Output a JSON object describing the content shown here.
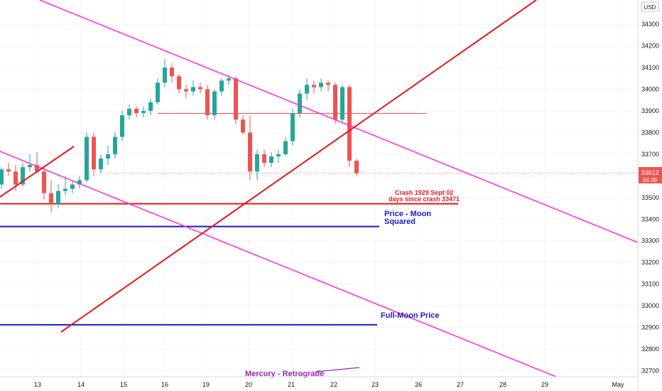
{
  "chart_data": {
    "type": "candlestick",
    "currency": "USD",
    "price_label": "33612",
    "countdown_label": "54:39",
    "y_axis_ticks": [
      "34300",
      "34200",
      "34100",
      "34000",
      "33900",
      "33800",
      "33700",
      "33600",
      "33500",
      "33400",
      "33300",
      "33200",
      "33100",
      "33000",
      "32900",
      "32800",
      "32700"
    ],
    "x_axis_ticks": [
      "13",
      "14",
      "15",
      "16",
      "19",
      "20",
      "21",
      "22",
      "23",
      "26",
      "27",
      "28",
      "29",
      "May"
    ],
    "ylim": [
      32660,
      34420
    ],
    "candles": [
      [
        33560,
        33640,
        33540,
        33630
      ],
      [
        33630,
        33660,
        33600,
        33620
      ],
      [
        33620,
        33650,
        33530,
        33560
      ],
      [
        33560,
        33660,
        33550,
        33640
      ],
      [
        33640,
        33700,
        33620,
        33650
      ],
      [
        33650,
        33710,
        33610,
        33620
      ],
      [
        33620,
        33640,
        33490,
        33520
      ],
      [
        33520,
        33580,
        33430,
        33470
      ],
      [
        33470,
        33560,
        33450,
        33530
      ],
      [
        33530,
        33600,
        33510,
        33540
      ],
      [
        33540,
        33580,
        33520,
        33560
      ],
      [
        33560,
        33600,
        33540,
        33580
      ],
      [
        33580,
        33800,
        33570,
        33780
      ],
      [
        33780,
        33800,
        33600,
        33630
      ],
      [
        33630,
        33700,
        33610,
        33680
      ],
      [
        33680,
        33740,
        33650,
        33700
      ],
      [
        33700,
        33800,
        33680,
        33780
      ],
      [
        33780,
        33900,
        33760,
        33880
      ],
      [
        33880,
        33930,
        33860,
        33910
      ],
      [
        33910,
        33920,
        33870,
        33890
      ],
      [
        33890,
        33920,
        33870,
        33900
      ],
      [
        33900,
        33960,
        33880,
        33940
      ],
      [
        33940,
        34050,
        33930,
        34030
      ],
      [
        34030,
        34140,
        34010,
        34100
      ],
      [
        34100,
        34120,
        34030,
        34060
      ],
      [
        34060,
        34070,
        33980,
        34000
      ],
      [
        34000,
        34020,
        33960,
        33990
      ],
      [
        33990,
        34040,
        33970,
        34010
      ],
      [
        34010,
        34030,
        33980,
        34000
      ],
      [
        34000,
        34020,
        33860,
        33880
      ],
      [
        33880,
        34000,
        33860,
        33990
      ],
      [
        33990,
        34050,
        33970,
        34040
      ],
      [
        34040,
        34070,
        34020,
        34050
      ],
      [
        34050,
        34060,
        33840,
        33860
      ],
      [
        33860,
        33880,
        33790,
        33800
      ],
      [
        33800,
        33880,
        33580,
        33620
      ],
      [
        33620,
        33720,
        33580,
        33700
      ],
      [
        33700,
        33720,
        33640,
        33660
      ],
      [
        33660,
        33710,
        33640,
        33690
      ],
      [
        33690,
        33720,
        33660,
        33700
      ],
      [
        33700,
        33780,
        33690,
        33760
      ],
      [
        33760,
        33910,
        33740,
        33890
      ],
      [
        33890,
        34000,
        33870,
        33980
      ],
      [
        33980,
        34050,
        33950,
        34020
      ],
      [
        34020,
        34040,
        33980,
        34010
      ],
      [
        34010,
        34050,
        33990,
        34030
      ],
      [
        34030,
        34040,
        33990,
        34020
      ],
      [
        34020,
        34030,
        33840,
        33860
      ],
      [
        33860,
        34020,
        33850,
        34010
      ],
      [
        34010,
        34020,
        33640,
        33670
      ],
      [
        33670,
        33680,
        33600,
        33612
      ]
    ],
    "annotations": {
      "crash_line1": "Crash 1929 Sept 02",
      "crash_line2": "days since crash 33471",
      "price_moon_1": "Price - Moon",
      "price_moon_2": "Squared",
      "full_moon": "Full-Moon Price",
      "mercury": "Mercury - Retrograde"
    },
    "horizontal_levels": {
      "crash_level": 33471,
      "price_moon_squared": 33366,
      "full_moon_price": 32912,
      "red_short_level": 33888
    },
    "colors": {
      "up": "#26a69a",
      "down": "#ef5350",
      "trend_magenta": "#ff2bd6",
      "trend_red": "#e31a1a",
      "level_blue": "#1a1acc",
      "level_red": "#e31a1a",
      "mercury_purple": "#9c27b0",
      "price_badge": "#ef5350"
    }
  }
}
